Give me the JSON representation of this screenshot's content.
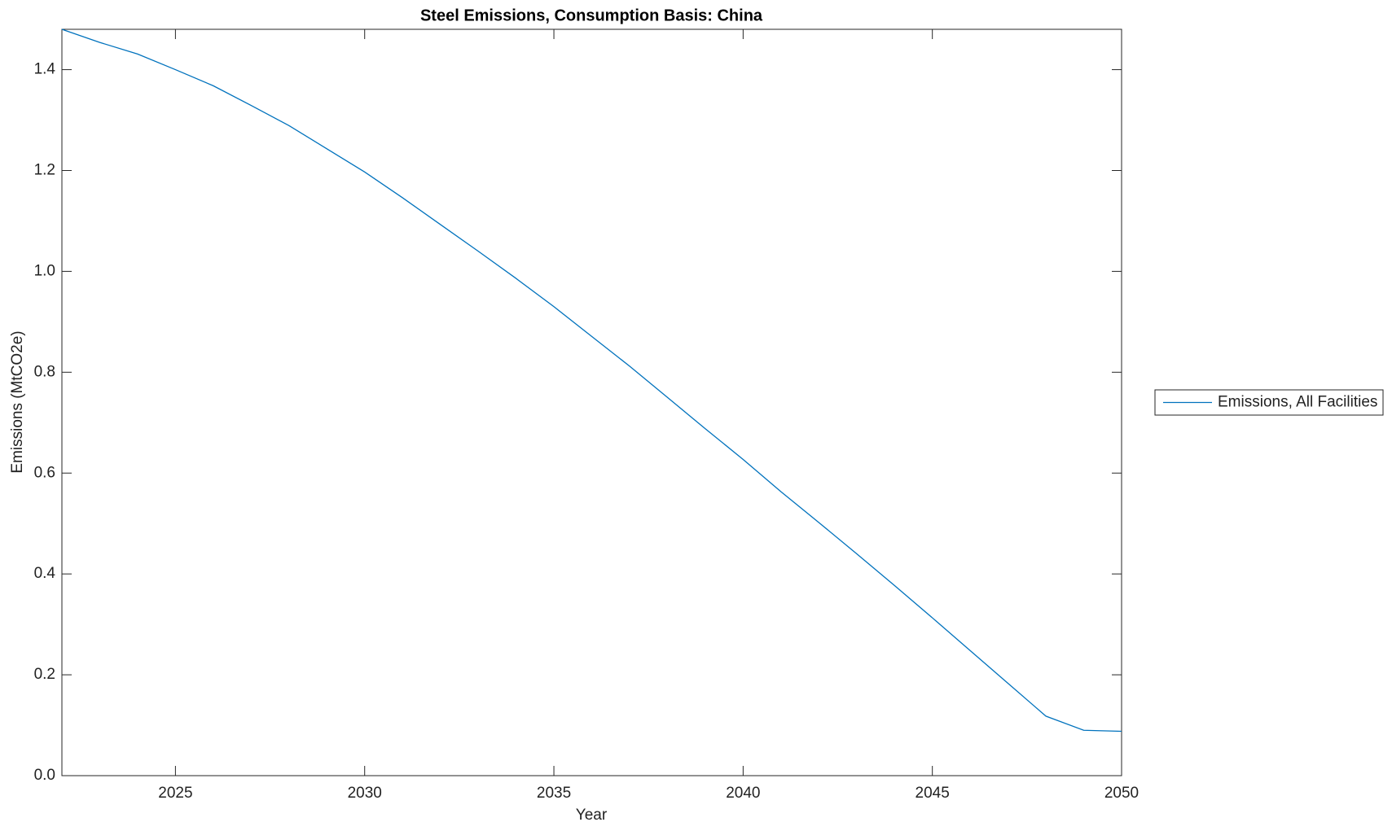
{
  "chart_data": {
    "type": "line",
    "title": "Steel Emissions, Consumption Basis: China",
    "x_label": "Year",
    "y_label": "Emissions (MtCO2e)",
    "x": [
      2022,
      2023,
      2024,
      2025,
      2026,
      2027,
      2028,
      2029,
      2030,
      2031,
      2032,
      2033,
      2034,
      2035,
      2036,
      2037,
      2038,
      2039,
      2040,
      2041,
      2042,
      2043,
      2044,
      2045,
      2046,
      2047,
      2048,
      2049,
      2050
    ],
    "series": [
      {
        "name": "Emissions, All Facilities",
        "color": "#0072bd",
        "values": [
          1.48,
          1.454,
          1.431,
          1.4,
          1.368,
          1.329,
          1.289,
          1.243,
          1.197,
          1.146,
          1.093,
          1.04,
          0.986,
          0.93,
          0.871,
          0.812,
          0.75,
          0.688,
          0.627,
          0.563,
          0.502,
          0.44,
          0.377,
          0.313,
          0.248,
          0.183,
          0.118,
          0.09,
          0.088
        ]
      }
    ],
    "xlim": [
      2022,
      2050
    ],
    "xticks": [
      2025,
      2030,
      2035,
      2040,
      2045,
      2050
    ],
    "ylim": [
      0,
      1.48
    ],
    "yticks": [
      {
        "value": 0,
        "label": "0.0"
      },
      0.2,
      0.4,
      0.6,
      0.8,
      {
        "value": 1,
        "label": "1.0"
      },
      1.2,
      1.4
    ],
    "grid": false,
    "legend": "outside-right"
  }
}
